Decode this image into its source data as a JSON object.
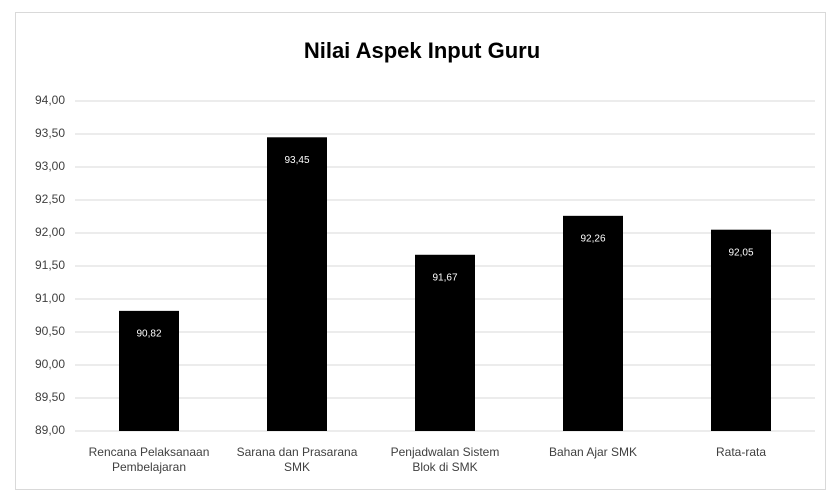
{
  "chart_data": {
    "type": "bar",
    "title": "Nilai Aspek Input Guru",
    "categories": [
      "Rencana Pelaksanaan Pembelajaran",
      "Sarana dan Prasarana SMK",
      "Penjadwalan Sistem Blok di SMK",
      "Bahan Ajar SMK",
      "Rata-rata"
    ],
    "values": [
      90.82,
      93.45,
      91.67,
      92.26,
      92.05
    ],
    "value_labels": [
      "90,82",
      "93,45",
      "91,67",
      "92,26",
      "92,05"
    ],
    "color": "#000000",
    "ylim": [
      89,
      94
    ],
    "yticks": [
      {
        "value": 89,
        "label": "89,00"
      },
      {
        "value": 89.5,
        "label": "89,50"
      },
      {
        "value": 90,
        "label": "90,00"
      },
      {
        "value": 90.5,
        "label": "90,50"
      },
      {
        "value": 91,
        "label": "91,00"
      },
      {
        "value": 91.5,
        "label": "91,50"
      },
      {
        "value": 92,
        "label": "92,00"
      },
      {
        "value": 92.5,
        "label": "92,50"
      },
      {
        "value": 93,
        "label": "93,00"
      },
      {
        "value": 93.5,
        "label": "93,50"
      },
      {
        "value": 94,
        "label": "94,00"
      }
    ],
    "grid": true
  }
}
